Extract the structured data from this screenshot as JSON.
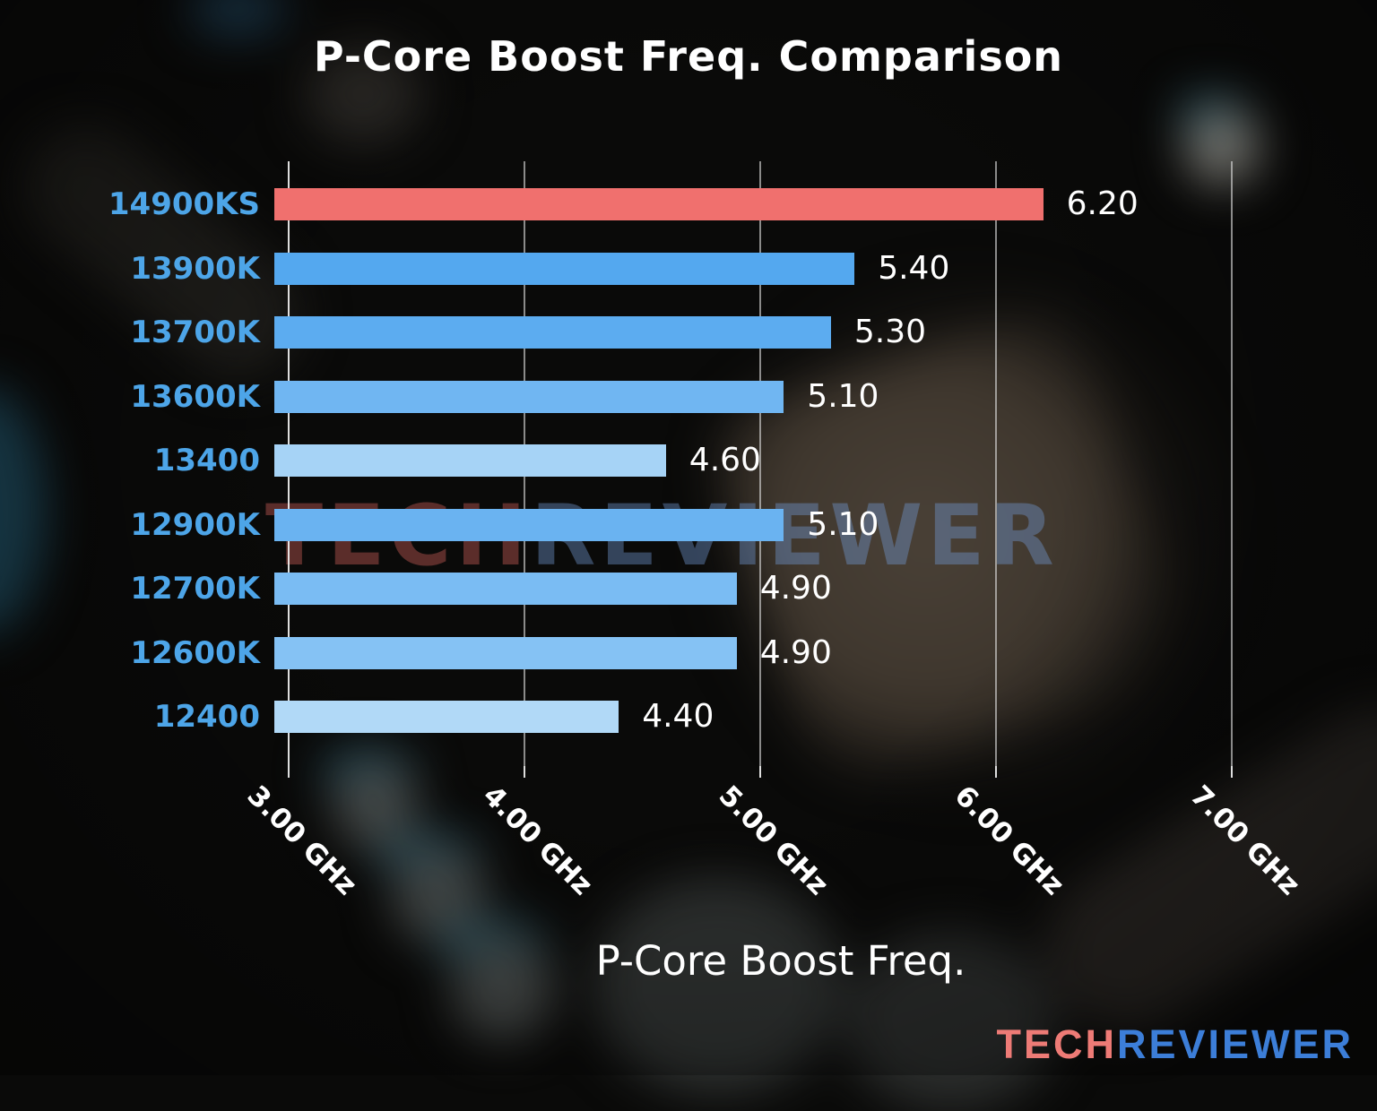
{
  "title": "P-Core Boost Freq. Comparison",
  "watermark": {
    "part1": "TECH",
    "part2": "REVIEWER"
  },
  "logo": {
    "part1": "TECH",
    "part2": "REVIEWER"
  },
  "chart_data": {
    "type": "bar",
    "orientation": "horizontal",
    "title": "P-Core Boost Freq. Comparison",
    "xlabel": "P-Core Boost Freq.",
    "ylabel": "",
    "unit": "GHz",
    "categories": [
      "14900KS",
      "13900K",
      "13700K",
      "13600K",
      "13400",
      "12900K",
      "12700K",
      "12600K",
      "12400"
    ],
    "values": [
      6.2,
      5.4,
      5.3,
      5.1,
      4.6,
      5.1,
      4.9,
      4.9,
      4.4
    ],
    "value_labels": [
      "6.20",
      "5.40",
      "5.30",
      "5.10",
      "4.60",
      "5.10",
      "4.90",
      "4.90",
      "4.40"
    ],
    "bar_colors": [
      "#f0706e",
      "#54a8ef",
      "#5cacf0",
      "#70b6f2",
      "#a6d3f6",
      "#6ab3f1",
      "#7abcf3",
      "#85c2f4",
      "#b1d9f7"
    ],
    "x_ticks": [
      {
        "value": 3,
        "label": "3.00 GHz"
      },
      {
        "value": 4,
        "label": "4.00 GHz"
      },
      {
        "value": 5,
        "label": "5.00 GHz"
      },
      {
        "value": 6,
        "label": "6.00 GHz"
      },
      {
        "value": 7,
        "label": "7.00 GHz"
      }
    ],
    "xlim": [
      2.94,
      7.24
    ],
    "grid": true,
    "legend": false,
    "category_label_color": "#4da5e8",
    "highlight_color": "#f0706e"
  }
}
